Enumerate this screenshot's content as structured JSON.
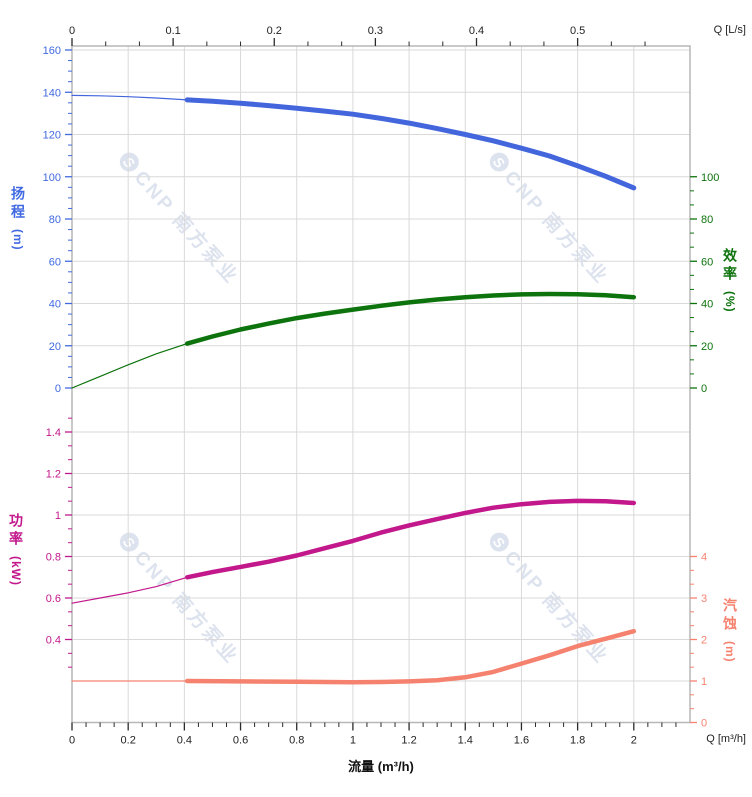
{
  "watermark": {
    "logo": "S",
    "text": "CNP 南方泵业"
  },
  "colors": {
    "grid": "#d9d9d9",
    "border": "#b7b7b7",
    "xticks": "#2a2a2a",
    "head": "#4169e1",
    "eff": "#0d730d",
    "power": "#c2188c",
    "npsh": "#f5826f",
    "watermark": "#dde3ee"
  },
  "chart_data": {
    "type": "line",
    "title": "",
    "grid": true,
    "x_bottom": {
      "label": "流量 (m³/h)",
      "corner_label": "Q [m³/h]",
      "tick_labels": [
        "0",
        "0.2",
        "0.4",
        "0.6",
        "0.8",
        "1",
        "1.2",
        "1.4",
        "1.6",
        "1.8",
        "2"
      ],
      "minor_step": 0.05,
      "range": [
        0,
        2.2
      ]
    },
    "x_top": {
      "corner_label": "Q [L/s]",
      "tick_labels": [
        "0",
        "0.1",
        "0.2",
        "0.3",
        "0.4",
        "0.5"
      ],
      "minors_per_major": 2,
      "range": [
        0,
        0.611
      ],
      "m3h_per_unit": 3.6
    },
    "axes": {
      "head": {
        "title": "扬程",
        "unit": "(m)",
        "side": "left",
        "color": "#4169e1",
        "tick_labels": [
          "0",
          "20",
          "40",
          "60",
          "80",
          "100",
          "120",
          "140",
          "160"
        ],
        "minor_step": 5
      },
      "eff": {
        "title": "效率",
        "unit": "(%)",
        "side": "right",
        "color": "#0d730d",
        "tick_labels": [
          "0",
          "20",
          "40",
          "60",
          "80",
          "100"
        ],
        "minors_per_major": 2
      },
      "power": {
        "title": "功率",
        "unit": "(kW)",
        "side": "left",
        "color": "#c2188c",
        "tick_labels": [
          "0.4",
          "0.6",
          "0.8",
          "1",
          "1.2",
          "1.4"
        ],
        "minors_per_major": 2
      },
      "npsh": {
        "title": "汽蚀",
        "unit": "(m)",
        "side": "right",
        "color": "#f5826f",
        "tick_labels": [
          "0",
          "1",
          "2",
          "3",
          "4"
        ],
        "minors_per_major": 2
      }
    },
    "series": [
      {
        "name": "扬程",
        "axis": "head",
        "color": "#4466dd",
        "width": 5,
        "rated_range": [
          0.41,
          2.0
        ],
        "points": [
          [
            0,
            138.5
          ],
          [
            0.1,
            138.3
          ],
          [
            0.2,
            137.9
          ],
          [
            0.3,
            137.3
          ],
          [
            0.41,
            136.4
          ],
          [
            0.5,
            135.7
          ],
          [
            0.6,
            134.8
          ],
          [
            0.7,
            133.7
          ],
          [
            0.8,
            132.4
          ],
          [
            0.9,
            131.1
          ],
          [
            1.0,
            129.6
          ],
          [
            1.1,
            127.6
          ],
          [
            1.2,
            125.4
          ],
          [
            1.3,
            122.8
          ],
          [
            1.4,
            120.0
          ],
          [
            1.5,
            117.0
          ],
          [
            1.6,
            113.5
          ],
          [
            1.7,
            109.8
          ],
          [
            1.8,
            105.2
          ],
          [
            1.9,
            100.2
          ],
          [
            2.0,
            94.7
          ]
        ]
      },
      {
        "name": "效率",
        "axis": "eff",
        "color": "#0d730d",
        "width": 4.5,
        "rated_range": [
          0.41,
          2.0
        ],
        "points": [
          [
            0,
            0
          ],
          [
            0.1,
            5.5
          ],
          [
            0.2,
            11
          ],
          [
            0.3,
            16.2
          ],
          [
            0.41,
            21
          ],
          [
            0.5,
            24.4
          ],
          [
            0.6,
            27.7
          ],
          [
            0.7,
            30.5
          ],
          [
            0.8,
            33.1
          ],
          [
            0.9,
            35.2
          ],
          [
            1.0,
            37.1
          ],
          [
            1.1,
            38.9
          ],
          [
            1.2,
            40.5
          ],
          [
            1.3,
            41.9
          ],
          [
            1.4,
            43.0
          ],
          [
            1.5,
            43.8
          ],
          [
            1.6,
            44.3
          ],
          [
            1.7,
            44.5
          ],
          [
            1.8,
            44.4
          ],
          [
            1.9,
            43.9
          ],
          [
            2.0,
            43.0
          ]
        ]
      },
      {
        "name": "功率",
        "axis": "power",
        "color": "#c2188c",
        "width": 4.5,
        "rated_range": [
          0.41,
          2.0
        ],
        "points": [
          [
            0,
            0.575
          ],
          [
            0.1,
            0.6
          ],
          [
            0.2,
            0.625
          ],
          [
            0.3,
            0.655
          ],
          [
            0.41,
            0.7
          ],
          [
            0.5,
            0.725
          ],
          [
            0.6,
            0.75
          ],
          [
            0.7,
            0.775
          ],
          [
            0.8,
            0.805
          ],
          [
            0.9,
            0.84
          ],
          [
            1.0,
            0.875
          ],
          [
            1.1,
            0.915
          ],
          [
            1.2,
            0.95
          ],
          [
            1.3,
            0.98
          ],
          [
            1.4,
            1.01
          ],
          [
            1.5,
            1.035
          ],
          [
            1.6,
            1.052
          ],
          [
            1.7,
            1.063
          ],
          [
            1.8,
            1.068
          ],
          [
            1.9,
            1.066
          ],
          [
            2.0,
            1.058
          ]
        ]
      },
      {
        "name": "汽蚀",
        "axis": "npsh",
        "color": "#f5826f",
        "width": 4.5,
        "rated_range": [
          0.41,
          2.0
        ],
        "points": [
          [
            0,
            1.0
          ],
          [
            0.2,
            1.0
          ],
          [
            0.41,
            1.0
          ],
          [
            0.6,
            0.99
          ],
          [
            0.8,
            0.98
          ],
          [
            1.0,
            0.97
          ],
          [
            1.1,
            0.975
          ],
          [
            1.2,
            0.99
          ],
          [
            1.3,
            1.02
          ],
          [
            1.4,
            1.09
          ],
          [
            1.5,
            1.22
          ],
          [
            1.6,
            1.42
          ],
          [
            1.7,
            1.62
          ],
          [
            1.8,
            1.84
          ],
          [
            1.9,
            2.02
          ],
          [
            2.0,
            2.2
          ]
        ]
      }
    ]
  }
}
